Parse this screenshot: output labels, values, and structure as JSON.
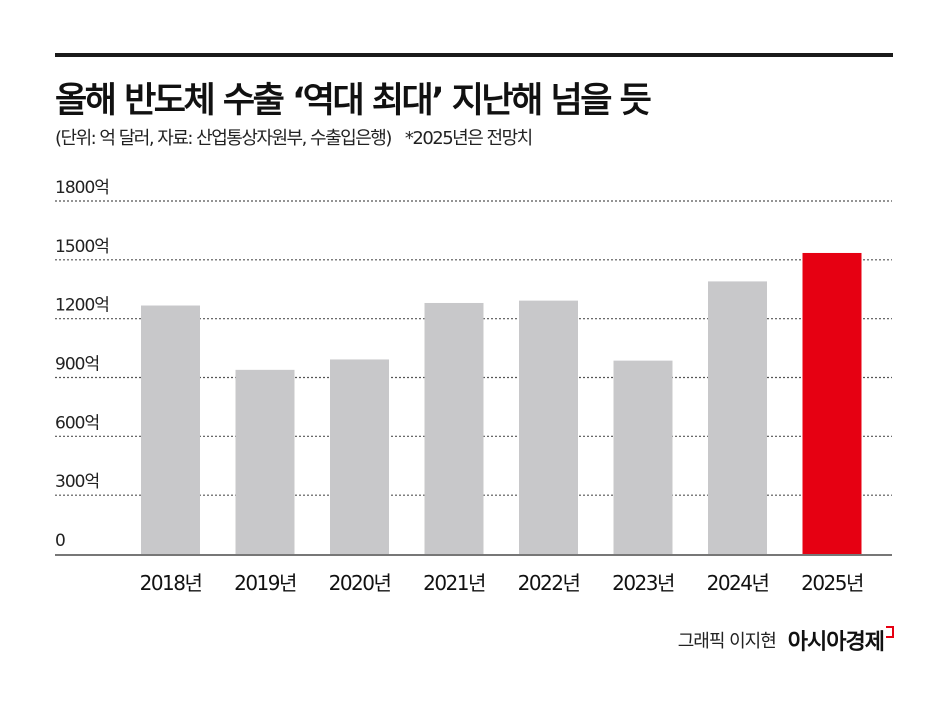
{
  "header": {
    "title": "올해 반도체 수출 ‘역대 최대’ 지난해 넘을 듯",
    "subtitle": "(단위: 억 달러, 자료: 산업통상자원부, 수출입은행)",
    "note": "*2025년은 전망치"
  },
  "footer": {
    "credit": "그래픽 이지현",
    "logo": "아시아경제"
  },
  "chart_data": {
    "type": "bar",
    "categories": [
      "2018년",
      "2019년",
      "2020년",
      "2021년",
      "2022년",
      "2023년",
      "2024년",
      "2025년"
    ],
    "values": [
      1267,
      939,
      992,
      1280,
      1292,
      986,
      1390,
      1535
    ],
    "ylim": [
      0,
      1800
    ],
    "yticks": [
      0,
      300,
      600,
      900,
      1200,
      1500,
      1800
    ],
    "ytick_labels": [
      "0",
      "300억",
      "600억",
      "900억",
      "1200억",
      "1500억",
      "1800억"
    ],
    "grid": true,
    "colors": {
      "default": "#c8c8ca",
      "highlight": "#e60012"
    },
    "highlight_index": 7
  }
}
